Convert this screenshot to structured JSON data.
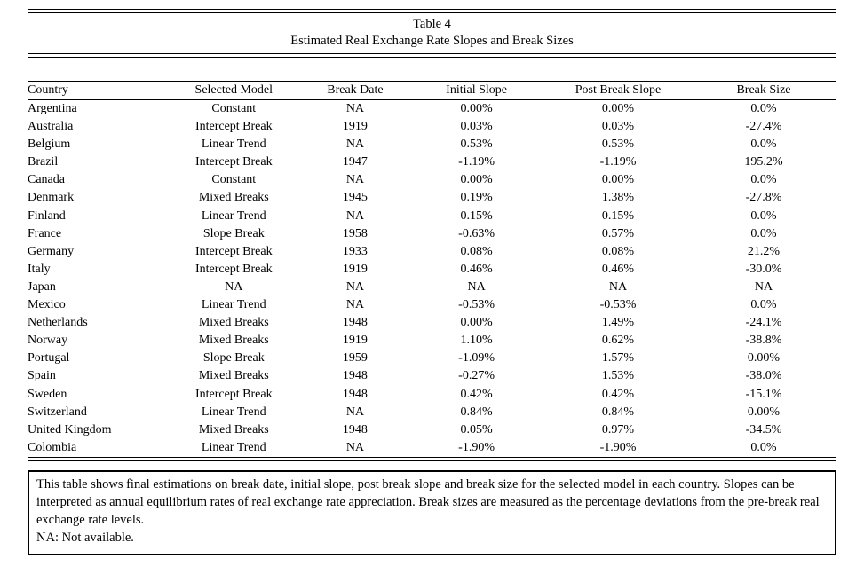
{
  "title": "Table 4",
  "subtitle": "Estimated Real Exchange Rate Slopes and Break Sizes",
  "table": {
    "columns": [
      "Country",
      "Selected Model",
      "Break Date",
      "Initial Slope",
      "Post Break Slope",
      "Break Size"
    ],
    "rows": [
      [
        "Argentina",
        "Constant",
        "NA",
        "0.00%",
        "0.00%",
        "0.0%"
      ],
      [
        "Australia",
        "Intercept Break",
        "1919",
        "0.03%",
        "0.03%",
        "-27.4%"
      ],
      [
        "Belgium",
        "Linear Trend",
        "NA",
        "0.53%",
        "0.53%",
        "0.0%"
      ],
      [
        "Brazil",
        "Intercept Break",
        "1947",
        "-1.19%",
        "-1.19%",
        "195.2%"
      ],
      [
        "Canada",
        "Constant",
        "NA",
        "0.00%",
        "0.00%",
        "0.0%"
      ],
      [
        "Denmark",
        "Mixed Breaks",
        "1945",
        "0.19%",
        "1.38%",
        "-27.8%"
      ],
      [
        "Finland",
        "Linear Trend",
        "NA",
        "0.15%",
        "0.15%",
        "0.0%"
      ],
      [
        "France",
        "Slope Break",
        "1958",
        "-0.63%",
        "0.57%",
        "0.0%"
      ],
      [
        "Germany",
        "Intercept Break",
        "1933",
        "0.08%",
        "0.08%",
        "21.2%"
      ],
      [
        "Italy",
        "Intercept Break",
        "1919",
        "0.46%",
        "0.46%",
        "-30.0%"
      ],
      [
        "Japan",
        "NA",
        "NA",
        "NA",
        "NA",
        "NA"
      ],
      [
        "Mexico",
        "Linear Trend",
        "NA",
        "-0.53%",
        "-0.53%",
        "0.0%"
      ],
      [
        "Netherlands",
        "Mixed Breaks",
        "1948",
        "0.00%",
        "1.49%",
        "-24.1%"
      ],
      [
        "Norway",
        "Mixed Breaks",
        "1919",
        "1.10%",
        "0.62%",
        "-38.8%"
      ],
      [
        "Portugal",
        "Slope Break",
        "1959",
        "-1.09%",
        "1.57%",
        "0.00%"
      ],
      [
        "Spain",
        "Mixed Breaks",
        "1948",
        "-0.27%",
        "1.53%",
        "-38.0%"
      ],
      [
        "Sweden",
        "Intercept Break",
        "1948",
        "0.42%",
        "0.42%",
        "-15.1%"
      ],
      [
        "Switzerland",
        "Linear Trend",
        "NA",
        "0.84%",
        "0.84%",
        "0.00%"
      ],
      [
        "United Kingdom",
        "Mixed Breaks",
        "1948",
        "0.05%",
        "0.97%",
        "-34.5%"
      ],
      [
        "Colombia",
        "Linear Trend",
        "NA",
        "-1.90%",
        "-1.90%",
        "0.0%"
      ]
    ]
  },
  "notes": {
    "body": "This table shows final estimations on break date, initial slope, post break slope and break size for the selected model in each country. Slopes can be interpreted as annual equilibrium rates of real exchange rate appreciation. Break sizes are measured as the percentage deviations from the pre-break real exchange rate levels.",
    "na": "NA: Not available."
  }
}
